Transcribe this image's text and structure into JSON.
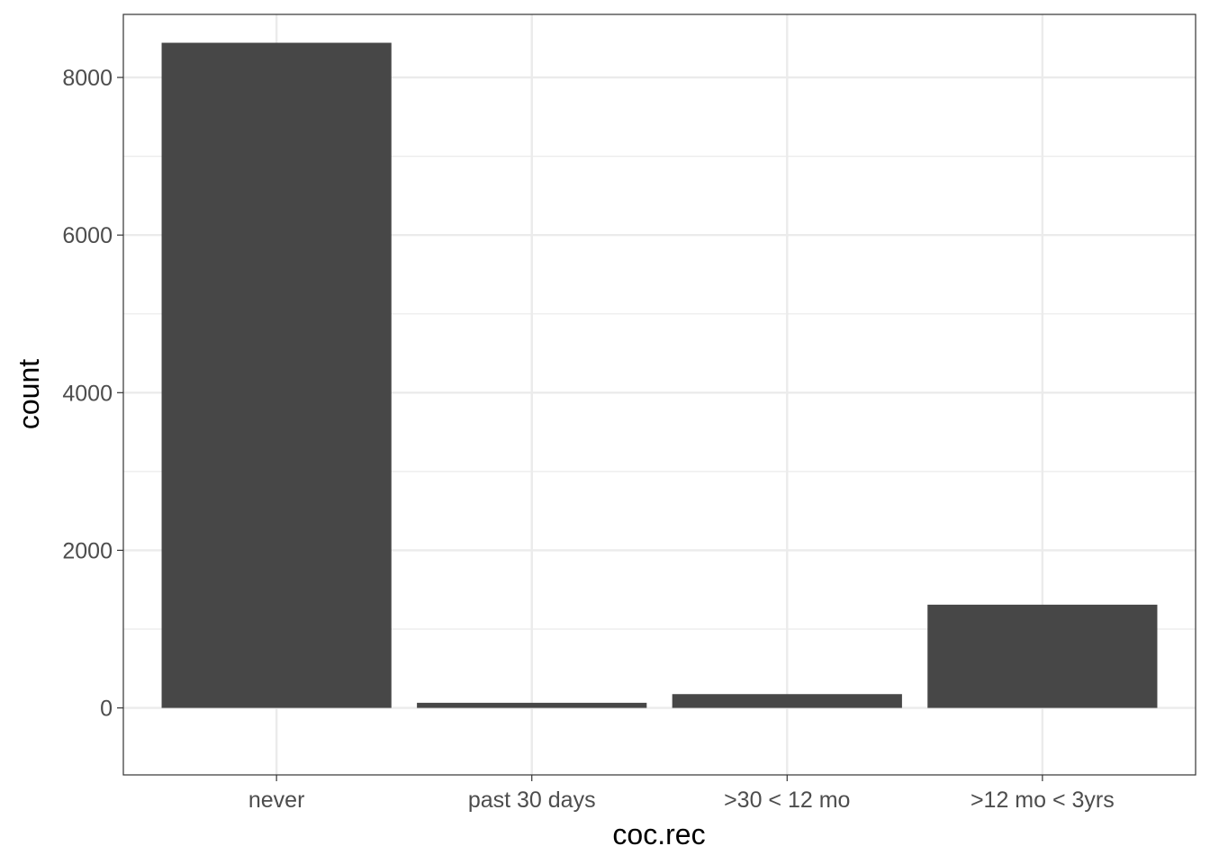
{
  "chart_data": {
    "type": "bar",
    "categories": [
      "never",
      "past 30 days",
      ">30 < 12 mo",
      ">12 mo < 3yrs"
    ],
    "values": [
      8440,
      65,
      175,
      1310
    ],
    "title": "",
    "xlabel": "coc.rec",
    "ylabel": "count",
    "ylim": [
      -850,
      8800
    ],
    "yticks": [
      0,
      2000,
      4000,
      6000,
      8000
    ],
    "ytick_labels": [
      "0",
      "2000",
      "4000",
      "6000",
      "8000"
    ],
    "grid": true,
    "legend": "none",
    "colors": {
      "bar": "#474747",
      "panel_border": "#333333",
      "grid": "#ebebeb",
      "tick_text": "#4d4d4d",
      "axis_title": "#000000"
    }
  }
}
